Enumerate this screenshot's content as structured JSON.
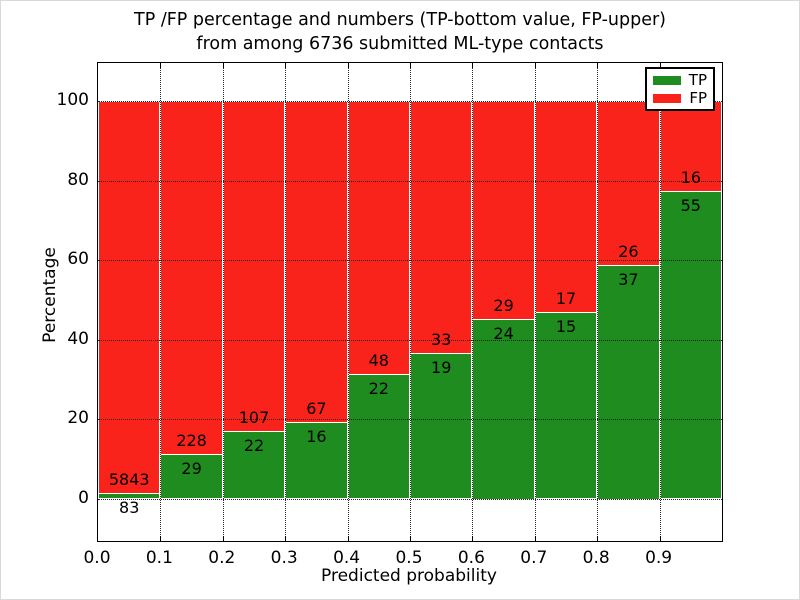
{
  "chart_data": {
    "type": "bar",
    "stacked": true,
    "normalized_to_percent": true,
    "title_line1": "TP /FP percentage and numbers (TP-bottom value, FP-upper)",
    "title_line2": "from among 6736 submitted ML-type contacts",
    "total_contacts": 6736,
    "xlabel": "Predicted probability",
    "ylabel": "Percentage",
    "categories": [
      "0.0-0.1",
      "0.1-0.2",
      "0.2-0.3",
      "0.3-0.4",
      "0.4-0.5",
      "0.5-0.6",
      "0.6-0.7",
      "0.7-0.8",
      "0.8-0.9",
      "0.9-1.0"
    ],
    "series": [
      {
        "name": "TP",
        "values": [
          83,
          29,
          22,
          16,
          22,
          19,
          24,
          15,
          37,
          55
        ]
      },
      {
        "name": "FP",
        "values": [
          5843,
          228,
          107,
          67,
          48,
          33,
          29,
          17,
          26,
          16
        ]
      }
    ],
    "x_tick_labels": [
      "0.0",
      "0.1",
      "0.2",
      "0.3",
      "0.4",
      "0.5",
      "0.6",
      "0.7",
      "0.8",
      "0.9"
    ],
    "y_ticks": [
      0,
      20,
      40,
      60,
      80,
      100
    ],
    "xlim": [
      0.0,
      1.0
    ],
    "ylim": [
      -11,
      109.5
    ],
    "grid": "dotted black, both axes",
    "legend_position": "upper right",
    "legend": [
      {
        "label": "TP",
        "color": "#1f8c1f"
      },
      {
        "label": "FP",
        "color": "#fa231b"
      }
    ]
  }
}
